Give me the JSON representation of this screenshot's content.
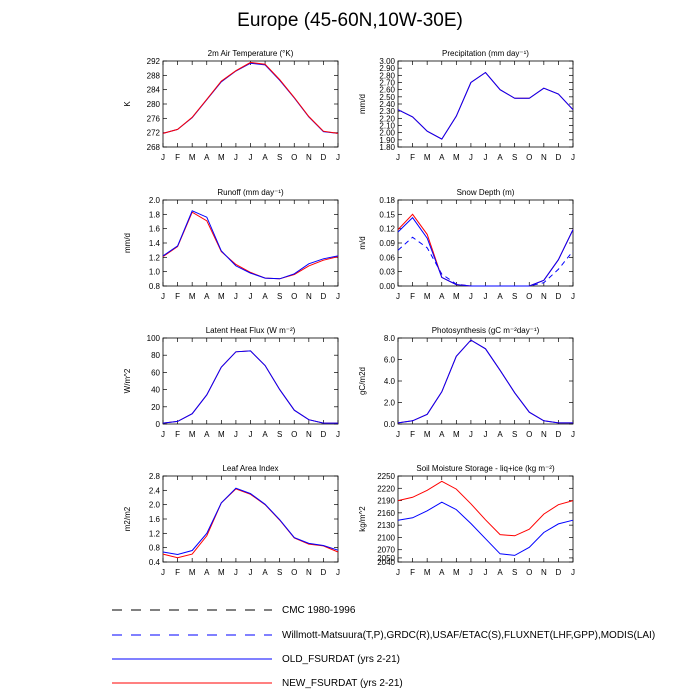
{
  "title": "Europe (45-60N,10W-30E)",
  "colors": {
    "cmc": "#000000",
    "obs": "#0000ff",
    "old": "#0000ff",
    "new": "#ff0000"
  },
  "legend": [
    {
      "label": "CMC 1980-1996",
      "style": "dashed",
      "color": "#000000"
    },
    {
      "label": "Willmott-Matsuura(T,P),GRDC(R),USAF/ETAC(S),FLUXNET(LHF,GPP),MODIS(LAI)",
      "style": "dashed",
      "color": "#0000ff"
    },
    {
      "label": "OLD_FSURDAT (yrs 2-21)",
      "style": "solid",
      "color": "#0000ff"
    },
    {
      "label": "NEW_FSURDAT (yrs 2-21)",
      "style": "solid",
      "color": "#ff0000"
    }
  ],
  "chart_data": [
    {
      "type": "line",
      "title": "2m Air Temperature (°K)",
      "ylabel": "K",
      "categories": [
        "J",
        "F",
        "M",
        "A",
        "M",
        "J",
        "J",
        "A",
        "S",
        "O",
        "N",
        "D",
        "J"
      ],
      "ylim": [
        268,
        292
      ],
      "yticks": [
        "268",
        "272",
        "276",
        "280",
        "284",
        "288",
        "292"
      ],
      "series": [
        {
          "key": "old",
          "values": [
            271.8,
            272.9,
            276.2,
            281.2,
            286.2,
            289.2,
            291.4,
            290.9,
            286.6,
            281.7,
            276.4,
            272.3,
            271.8
          ]
        },
        {
          "key": "new",
          "values": [
            271.8,
            272.9,
            276.3,
            281.3,
            286.4,
            289.3,
            291.6,
            291.1,
            286.8,
            281.8,
            276.5,
            272.4,
            271.8
          ]
        }
      ]
    },
    {
      "type": "line",
      "title": "Precipitation (mm day⁻¹)",
      "ylabel": "mm/d",
      "categories": [
        "J",
        "F",
        "M",
        "A",
        "M",
        "J",
        "J",
        "A",
        "S",
        "O",
        "N",
        "D",
        "J"
      ],
      "ylim": [
        1.8,
        3.0
      ],
      "yticks": [
        "1.80",
        "1.90",
        "2.00",
        "2.10",
        "2.20",
        "2.30",
        "2.40",
        "2.50",
        "2.60",
        "2.70",
        "2.80",
        "2.90",
        "3.00"
      ],
      "series": [
        {
          "key": "new",
          "values": [
            2.32,
            2.22,
            2.02,
            1.91,
            2.23,
            2.7,
            2.84,
            2.6,
            2.48,
            2.48,
            2.62,
            2.54,
            2.32
          ]
        },
        {
          "key": "old",
          "values": [
            2.32,
            2.22,
            2.02,
            1.91,
            2.23,
            2.7,
            2.84,
            2.6,
            2.48,
            2.48,
            2.62,
            2.54,
            2.32
          ]
        }
      ]
    },
    {
      "type": "line",
      "title": "Runoff (mm day⁻¹)",
      "ylabel": "mm/d",
      "categories": [
        "J",
        "F",
        "M",
        "A",
        "M",
        "J",
        "J",
        "A",
        "S",
        "O",
        "N",
        "D",
        "J"
      ],
      "ylim": [
        0.8,
        2.0
      ],
      "yticks": [
        "0.8",
        "1.0",
        "1.2",
        "1.4",
        "1.6",
        "1.8",
        "2.0"
      ],
      "series": [
        {
          "key": "new",
          "values": [
            1.21,
            1.35,
            1.83,
            1.71,
            1.28,
            1.1,
            0.99,
            0.91,
            0.9,
            0.96,
            1.08,
            1.16,
            1.21
          ]
        },
        {
          "key": "old",
          "values": [
            1.22,
            1.36,
            1.85,
            1.76,
            1.29,
            1.08,
            0.98,
            0.91,
            0.9,
            0.97,
            1.11,
            1.18,
            1.22
          ]
        }
      ]
    },
    {
      "type": "line",
      "title": "Snow Depth (m)",
      "ylabel": "m/d",
      "categories": [
        "J",
        "F",
        "M",
        "A",
        "M",
        "J",
        "J",
        "A",
        "S",
        "O",
        "N",
        "D",
        "J"
      ],
      "ylim": [
        0,
        0.18
      ],
      "yticks": [
        "0.00",
        "0.03",
        "0.06",
        "0.09",
        "0.12",
        "0.15",
        "0.18"
      ],
      "series": [
        {
          "key": "obs",
          "dashed": true,
          "values": [
            0.075,
            0.102,
            0.08,
            0.025,
            0.004,
            0.0,
            0.0,
            0.0,
            0.0,
            0.0,
            0.007,
            0.035,
            0.073
          ]
        },
        {
          "key": "new",
          "values": [
            0.118,
            0.15,
            0.108,
            0.018,
            0.003,
            0.0,
            0.0,
            0.0,
            0.0,
            0.0,
            0.012,
            0.055,
            0.118
          ]
        },
        {
          "key": "old",
          "values": [
            0.113,
            0.143,
            0.1,
            0.018,
            0.003,
            0.0,
            0.0,
            0.0,
            0.0,
            0.0,
            0.012,
            0.055,
            0.118
          ]
        }
      ]
    },
    {
      "type": "line",
      "title": "Latent Heat Flux (W m⁻²)",
      "ylabel": "W/m^2",
      "categories": [
        "J",
        "F",
        "M",
        "A",
        "M",
        "J",
        "J",
        "A",
        "S",
        "O",
        "N",
        "D",
        "J"
      ],
      "ylim": [
        0,
        100
      ],
      "yticks": [
        "0",
        "20",
        "40",
        "60",
        "80",
        "100"
      ],
      "series": [
        {
          "key": "new",
          "values": [
            1,
            3,
            12,
            34,
            66,
            84,
            85,
            68,
            40,
            16,
            5,
            1,
            1
          ]
        },
        {
          "key": "old",
          "values": [
            1,
            3,
            12,
            34,
            66,
            84,
            85,
            68,
            40,
            16,
            5,
            1,
            1
          ]
        }
      ]
    },
    {
      "type": "line",
      "title": "Photosynthesis (gC m⁻²day⁻¹)",
      "ylabel": "gC/m2d",
      "categories": [
        "J",
        "F",
        "M",
        "A",
        "M",
        "J",
        "J",
        "A",
        "S",
        "O",
        "N",
        "D",
        "J"
      ],
      "ylim": [
        0,
        8
      ],
      "yticks": [
        "0.0",
        "2.0",
        "4.0",
        "6.0",
        "8.0"
      ],
      "series": [
        {
          "key": "new",
          "values": [
            0.1,
            0.3,
            0.9,
            3.0,
            6.3,
            7.8,
            7.0,
            5.0,
            2.9,
            1.1,
            0.3,
            0.1,
            0.1
          ]
        },
        {
          "key": "old",
          "values": [
            0.1,
            0.3,
            0.9,
            3.0,
            6.3,
            7.8,
            7.0,
            5.0,
            2.9,
            1.1,
            0.3,
            0.1,
            0.1
          ]
        }
      ]
    },
    {
      "type": "line",
      "title": "Leaf Area Index",
      "ylabel": "m2/m2",
      "categories": [
        "J",
        "F",
        "M",
        "A",
        "M",
        "J",
        "J",
        "A",
        "S",
        "O",
        "N",
        "D",
        "J"
      ],
      "ylim": [
        0.4,
        2.8
      ],
      "yticks": [
        "0.4",
        "0.8",
        "1.2",
        "1.6",
        "2.0",
        "2.4",
        "2.8"
      ],
      "series": [
        {
          "key": "new",
          "values": [
            0.62,
            0.52,
            0.62,
            1.13,
            2.05,
            2.44,
            2.29,
            2.0,
            1.57,
            1.07,
            0.9,
            0.85,
            0.68
          ]
        },
        {
          "key": "old",
          "values": [
            0.68,
            0.61,
            0.72,
            1.2,
            2.05,
            2.46,
            2.31,
            2.01,
            1.58,
            1.08,
            0.92,
            0.86,
            0.73
          ]
        }
      ]
    },
    {
      "type": "line",
      "title": "Soil Moisture Storage - liq+ice (kg m⁻²)",
      "ylabel": "kg/m^2",
      "categories": [
        "J",
        "F",
        "M",
        "A",
        "M",
        "J",
        "J",
        "A",
        "S",
        "O",
        "N",
        "D",
        "J"
      ],
      "ylim": [
        2040,
        2250
      ],
      "yticks": [
        "2040",
        "2050",
        "2070",
        "2100",
        "2130",
        "2160",
        "2190",
        "2220",
        "2250"
      ],
      "series": [
        {
          "key": "new",
          "values": [
            2190,
            2198,
            2215,
            2237,
            2218,
            2182,
            2143,
            2107,
            2104,
            2120,
            2157,
            2180,
            2190
          ]
        },
        {
          "key": "old",
          "values": [
            2142,
            2148,
            2165,
            2186,
            2168,
            2134,
            2097,
            2060,
            2056,
            2076,
            2112,
            2133,
            2142
          ]
        }
      ]
    }
  ]
}
